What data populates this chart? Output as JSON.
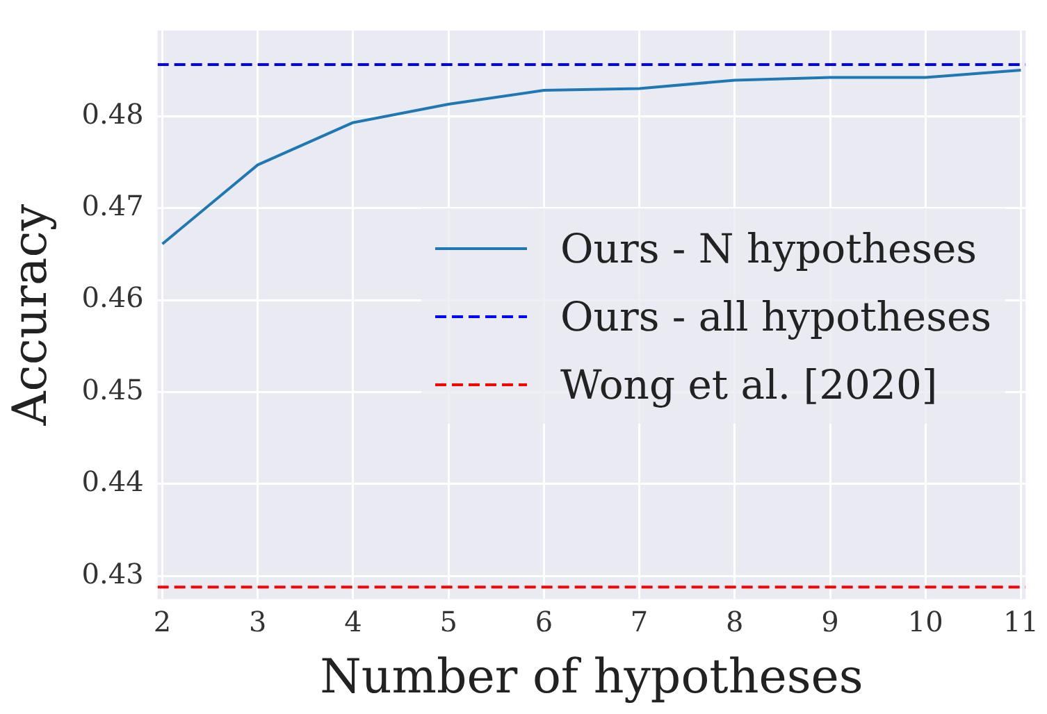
{
  "chart_data": {
    "type": "line",
    "xlabel": "Number of hypotheses",
    "ylabel": "Accuracy",
    "x": [
      2,
      3,
      4,
      5,
      6,
      7,
      8,
      9,
      10,
      11
    ],
    "series": [
      {
        "name": "Ours - N hypotheses",
        "color": "#1f77b4",
        "values": [
          0.4661,
          0.4747,
          0.4793,
          0.4813,
          0.4828,
          0.483,
          0.4839,
          0.4842,
          0.4842,
          0.485
        ]
      }
    ],
    "ref_lines": [
      {
        "axis": "y",
        "value": 0.4856,
        "label": "Ours - all hypotheses",
        "color": "#0000ff",
        "line_style": "dashed"
      },
      {
        "axis": "y",
        "value": 0.4288,
        "label": "Wong et al. [2020]",
        "color": "#ff0000",
        "line_style": "dashed"
      }
    ],
    "xlim": [
      1.95,
      11.05
    ],
    "xticks": [
      2,
      3,
      4,
      5,
      6,
      7,
      8,
      9,
      10,
      11
    ],
    "ylim": [
      0.4275,
      0.4893
    ],
    "yticks": [
      0.43,
      0.44,
      0.45,
      0.46,
      0.47,
      0.48
    ],
    "grid": true,
    "legend": "right",
    "marker": "none",
    "line_style": "solid"
  }
}
